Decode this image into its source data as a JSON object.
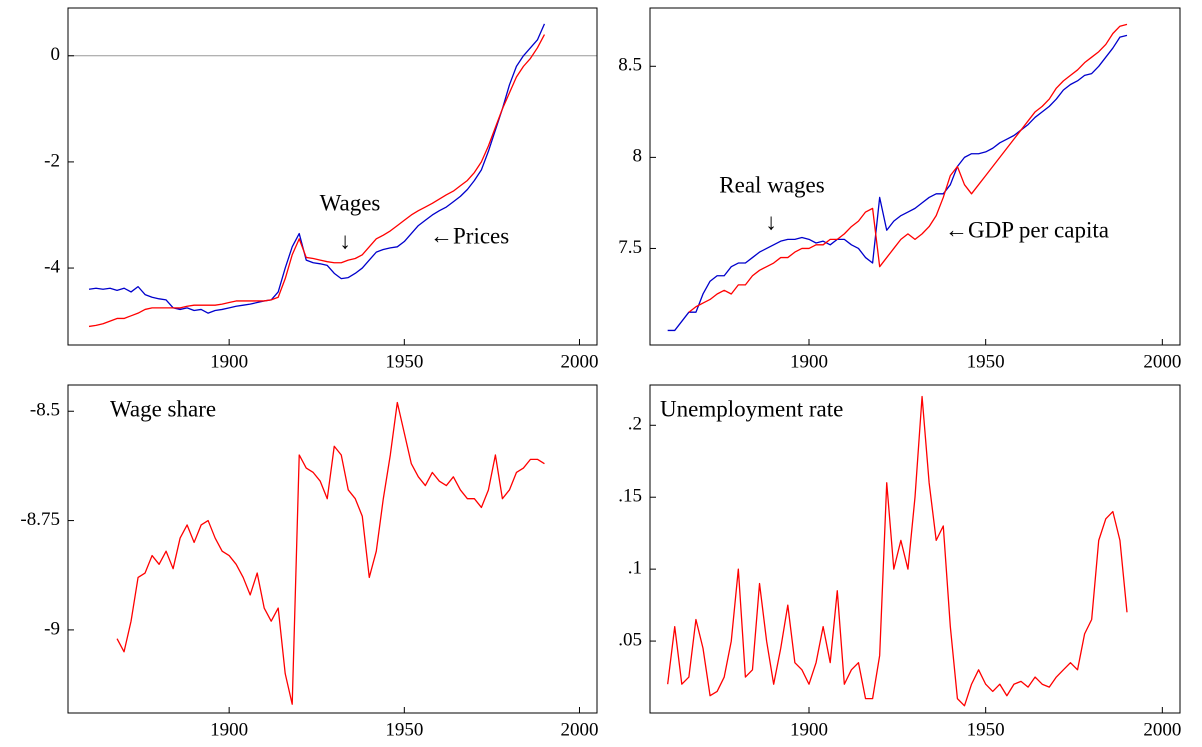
{
  "chart_data": [
    {
      "type": "line",
      "x": [
        1860,
        1862,
        1864,
        1866,
        1868,
        1870,
        1872,
        1874,
        1876,
        1878,
        1880,
        1882,
        1884,
        1886,
        1888,
        1890,
        1892,
        1894,
        1896,
        1898,
        1900,
        1902,
        1904,
        1906,
        1908,
        1910,
        1912,
        1914,
        1916,
        1918,
        1920,
        1922,
        1924,
        1926,
        1928,
        1930,
        1932,
        1934,
        1936,
        1938,
        1940,
        1942,
        1944,
        1946,
        1948,
        1950,
        1952,
        1954,
        1956,
        1958,
        1960,
        1962,
        1964,
        1966,
        1968,
        1970,
        1972,
        1974,
        1976,
        1978,
        1980,
        1982,
        1984,
        1986,
        1988,
        1990
      ],
      "series": [
        {
          "color": "#0000cc",
          "values": [
            -4.4,
            -4.38,
            -4.4,
            -4.38,
            -4.42,
            -4.38,
            -4.45,
            -4.35,
            -4.5,
            -4.55,
            -4.58,
            -4.6,
            -4.75,
            -4.78,
            -4.75,
            -4.8,
            -4.78,
            -4.85,
            -4.8,
            -4.78,
            -4.75,
            -4.72,
            -4.7,
            -4.68,
            -4.65,
            -4.62,
            -4.6,
            -4.45,
            -4.0,
            -3.6,
            -3.35,
            -3.85,
            -3.9,
            -3.92,
            -3.95,
            -4.1,
            -4.2,
            -4.18,
            -4.1,
            -4.0,
            -3.85,
            -3.7,
            -3.65,
            -3.62,
            -3.6,
            -3.5,
            -3.35,
            -3.2,
            -3.1,
            -3.0,
            -2.92,
            -2.85,
            -2.75,
            -2.65,
            -2.52,
            -2.35,
            -2.15,
            -1.8,
            -1.4,
            -1.0,
            -0.55,
            -0.2,
            0.0,
            0.15,
            0.3,
            0.6
          ]
        },
        {
          "color": "#ff0000",
          "values": [
            -5.1,
            -5.08,
            -5.05,
            -5.0,
            -4.95,
            -4.95,
            -4.9,
            -4.85,
            -4.78,
            -4.75,
            -4.75,
            -4.75,
            -4.75,
            -4.75,
            -4.72,
            -4.7,
            -4.7,
            -4.7,
            -4.7,
            -4.68,
            -4.65,
            -4.62,
            -4.62,
            -4.62,
            -4.62,
            -4.62,
            -4.6,
            -4.55,
            -4.2,
            -3.75,
            -3.45,
            -3.8,
            -3.82,
            -3.85,
            -3.88,
            -3.9,
            -3.9,
            -3.85,
            -3.82,
            -3.75,
            -3.6,
            -3.45,
            -3.38,
            -3.3,
            -3.2,
            -3.1,
            -3.0,
            -2.92,
            -2.85,
            -2.78,
            -2.7,
            -2.62,
            -2.55,
            -2.45,
            -2.35,
            -2.2,
            -2.0,
            -1.7,
            -1.35,
            -1.0,
            -0.7,
            -0.4,
            -0.2,
            -0.05,
            0.15,
            0.4
          ]
        }
      ],
      "annotations": [
        "Wages",
        "↓",
        "←Prices"
      ],
      "reference_line": 0,
      "xlim": [
        1854,
        2005
      ],
      "xticks": [
        1900,
        1950,
        2000
      ],
      "ylim": [
        -5.45,
        0.9
      ],
      "yticks": [
        -4,
        -2,
        0
      ]
    },
    {
      "type": "line",
      "x": [
        1860,
        1862,
        1864,
        1866,
        1868,
        1870,
        1872,
        1874,
        1876,
        1878,
        1880,
        1882,
        1884,
        1886,
        1888,
        1890,
        1892,
        1894,
        1896,
        1898,
        1900,
        1902,
        1904,
        1906,
        1908,
        1910,
        1912,
        1914,
        1916,
        1918,
        1920,
        1922,
        1924,
        1926,
        1928,
        1930,
        1932,
        1934,
        1936,
        1938,
        1940,
        1942,
        1944,
        1946,
        1948,
        1950,
        1952,
        1954,
        1956,
        1958,
        1960,
        1962,
        1964,
        1966,
        1968,
        1970,
        1972,
        1974,
        1976,
        1978,
        1980,
        1982,
        1984,
        1986,
        1988,
        1990
      ],
      "series": [
        {
          "color": "#0000cc",
          "values": [
            7.05,
            7.05,
            7.1,
            7.15,
            7.15,
            7.25,
            7.32,
            7.35,
            7.35,
            7.4,
            7.42,
            7.42,
            7.45,
            7.48,
            7.5,
            7.52,
            7.54,
            7.55,
            7.55,
            7.56,
            7.55,
            7.53,
            7.54,
            7.52,
            7.55,
            7.55,
            7.52,
            7.5,
            7.45,
            7.42,
            7.78,
            7.6,
            7.65,
            7.68,
            7.7,
            7.72,
            7.75,
            7.78,
            7.8,
            7.8,
            7.85,
            7.95,
            8.0,
            8.02,
            8.02,
            8.03,
            8.05,
            8.08,
            8.1,
            8.12,
            8.15,
            8.18,
            8.22,
            8.25,
            8.28,
            8.32,
            8.37,
            8.4,
            8.42,
            8.45,
            8.46,
            8.5,
            8.55,
            8.6,
            8.66,
            8.67
          ]
        },
        {
          "color": "#ff0000",
          "values": [
            null,
            null,
            null,
            7.15,
            7.18,
            7.2,
            7.22,
            7.25,
            7.27,
            7.25,
            7.3,
            7.3,
            7.35,
            7.38,
            7.4,
            7.42,
            7.45,
            7.45,
            7.48,
            7.5,
            7.5,
            7.52,
            7.52,
            7.55,
            7.55,
            7.58,
            7.62,
            7.65,
            7.7,
            7.72,
            7.4,
            7.45,
            7.5,
            7.55,
            7.58,
            7.55,
            7.58,
            7.62,
            7.68,
            7.78,
            7.9,
            7.95,
            7.85,
            7.8,
            7.85,
            7.9,
            7.95,
            8.0,
            8.05,
            8.1,
            8.15,
            8.2,
            8.25,
            8.28,
            8.32,
            8.38,
            8.42,
            8.45,
            8.48,
            8.52,
            8.55,
            8.58,
            8.62,
            8.68,
            8.72,
            8.73
          ]
        }
      ],
      "annotations": [
        "Real wages",
        "↓",
        "←GDP per capita"
      ],
      "xlim": [
        1855,
        2005
      ],
      "xticks": [
        1900,
        1950,
        2000
      ],
      "ylim": [
        6.97,
        8.82
      ],
      "yticks": [
        7.5,
        8,
        8.5
      ]
    },
    {
      "type": "line",
      "title": "Wage share",
      "x": [
        1868,
        1870,
        1872,
        1874,
        1876,
        1878,
        1880,
        1882,
        1884,
        1886,
        1888,
        1890,
        1892,
        1894,
        1896,
        1898,
        1900,
        1902,
        1904,
        1906,
        1908,
        1910,
        1912,
        1914,
        1916,
        1918,
        1920,
        1922,
        1924,
        1926,
        1928,
        1930,
        1932,
        1934,
        1936,
        1938,
        1940,
        1942,
        1944,
        1946,
        1948,
        1950,
        1952,
        1954,
        1956,
        1958,
        1960,
        1962,
        1964,
        1966,
        1968,
        1970,
        1972,
        1974,
        1976,
        1978,
        1980,
        1982,
        1984,
        1986,
        1988,
        1990
      ],
      "series": [
        {
          "color": "#ff0000",
          "values": [
            -9.02,
            -9.05,
            -8.98,
            -8.88,
            -8.87,
            -8.83,
            -8.85,
            -8.82,
            -8.86,
            -8.79,
            -8.76,
            -8.8,
            -8.76,
            -8.75,
            -8.79,
            -8.82,
            -8.83,
            -8.85,
            -8.88,
            -8.92,
            -8.87,
            -8.95,
            -8.98,
            -8.95,
            -9.1,
            -9.17,
            -8.6,
            -8.63,
            -8.64,
            -8.66,
            -8.7,
            -8.58,
            -8.6,
            -8.68,
            -8.7,
            -8.74,
            -8.88,
            -8.82,
            -8.7,
            -8.6,
            -8.48,
            -8.55,
            -8.62,
            -8.65,
            -8.67,
            -8.64,
            -8.66,
            -8.67,
            -8.65,
            -8.68,
            -8.7,
            -8.7,
            -8.72,
            -8.68,
            -8.6,
            -8.7,
            -8.68,
            -8.64,
            -8.63,
            -8.61,
            -8.61,
            -8.62
          ]
        }
      ],
      "xlim": [
        1854,
        2005
      ],
      "xticks": [
        1900,
        1950,
        2000
      ],
      "ylim": [
        -9.19,
        -8.44
      ],
      "yticks": [
        -9,
        -8.75,
        -8.5
      ]
    },
    {
      "type": "line",
      "title": "Unemployment rate",
      "x": [
        1860,
        1862,
        1864,
        1866,
        1868,
        1870,
        1872,
        1874,
        1876,
        1878,
        1880,
        1882,
        1884,
        1886,
        1888,
        1890,
        1892,
        1894,
        1896,
        1898,
        1900,
        1902,
        1904,
        1906,
        1908,
        1910,
        1912,
        1914,
        1916,
        1918,
        1920,
        1922,
        1924,
        1926,
        1928,
        1930,
        1932,
        1934,
        1936,
        1938,
        1940,
        1942,
        1944,
        1946,
        1948,
        1950,
        1952,
        1954,
        1956,
        1958,
        1960,
        1962,
        1964,
        1966,
        1968,
        1970,
        1972,
        1974,
        1976,
        1978,
        1980,
        1982,
        1984,
        1986,
        1988,
        1990
      ],
      "series": [
        {
          "color": "#ff0000",
          "values": [
            0.02,
            0.06,
            0.02,
            0.025,
            0.065,
            0.045,
            0.012,
            0.015,
            0.025,
            0.05,
            0.1,
            0.025,
            0.03,
            0.09,
            0.05,
            0.02,
            0.045,
            0.075,
            0.035,
            0.03,
            0.02,
            0.035,
            0.06,
            0.035,
            0.085,
            0.02,
            0.03,
            0.035,
            0.01,
            0.01,
            0.04,
            0.16,
            0.1,
            0.12,
            0.1,
            0.15,
            0.22,
            0.16,
            0.12,
            0.13,
            0.06,
            0.01,
            0.005,
            0.02,
            0.03,
            0.02,
            0.015,
            0.02,
            0.012,
            0.02,
            0.022,
            0.018,
            0.025,
            0.02,
            0.018,
            0.025,
            0.03,
            0.035,
            0.03,
            0.055,
            0.065,
            0.12,
            0.135,
            0.14,
            0.12,
            0.07
          ]
        }
      ],
      "xlim": [
        1855,
        2005
      ],
      "xticks": [
        1900,
        1950,
        2000
      ],
      "ylim": [
        0,
        0.228
      ],
      "yticks": [
        {
          "value": 0.05,
          "label": ".05"
        },
        {
          "value": 0.1,
          "label": ".1"
        },
        {
          "value": 0.15,
          "label": ".15"
        },
        {
          "value": 0.2,
          "label": ".2"
        }
      ]
    }
  ]
}
